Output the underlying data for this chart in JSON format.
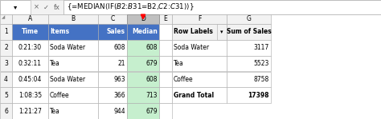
{
  "formula_bar": "{=MEDIAN(IF($B$2:$B$31=B2,$C$2:$C$31))}",
  "table1_headers": [
    "Time",
    "Items",
    "Sales",
    "Median"
  ],
  "table1_rows": [
    [
      "0:21:30",
      "Soda Water",
      "608",
      "608"
    ],
    [
      "0:32:11",
      "Tea",
      "21",
      "679"
    ],
    [
      "0:45:04",
      "Soda Water",
      "963",
      "608"
    ],
    [
      "1:08:35",
      "Coffee",
      "366",
      "713"
    ],
    [
      "1:21:27",
      "Tea",
      "944",
      "679"
    ]
  ],
  "table2_headers": [
    "Row Labels",
    "Sum of Sales"
  ],
  "table2_rows": [
    [
      "Soda Water",
      "3117"
    ],
    [
      "Tea",
      "5523"
    ],
    [
      "Coffee",
      "8758"
    ],
    [
      "Grand Total",
      "17398"
    ]
  ],
  "header_bg": "#4472C4",
  "header_fg": "#FFFFFF",
  "median_col_bg": "#C6EFCE",
  "selected_col_bg": "#C0C0C0",
  "grid_line_color": "#D0D0D0",
  "arrow_color": "#FF0000",
  "sheet_bg": "#FFFFFF",
  "row_num_bg": "#F2F2F2",
  "col_header_bg": "#F2F2F2",
  "formula_bar_bg": "#F2F2F2",
  "pivot_header_bg": "#F2F2F2"
}
